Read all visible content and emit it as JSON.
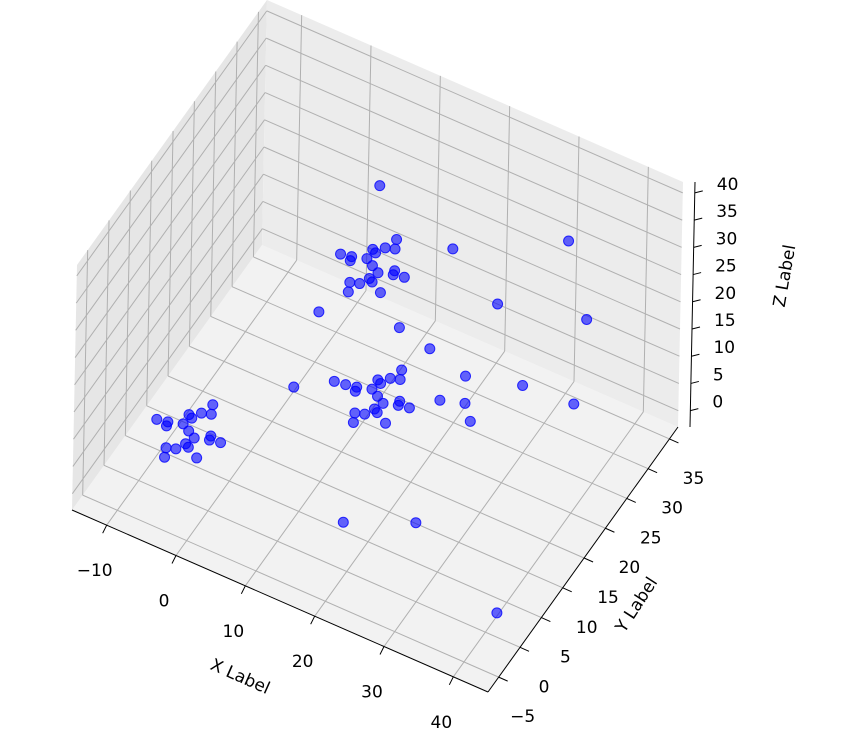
{
  "chart_data": {
    "type": "scatter3d",
    "xlabel": "X Label",
    "ylabel": "Y Label",
    "zlabel": "Z Label",
    "color": "#0000ff",
    "grid": true,
    "xlim": [
      -15,
      45
    ],
    "ylim": [
      -7.5,
      37
    ],
    "zlim": [
      -3,
      42
    ],
    "xticks": [
      {
        "value": -10,
        "label": "−10"
      },
      0,
      10,
      20,
      30,
      40
    ],
    "yticks": [
      {
        "value": -5,
        "label": "−5"
      },
      0,
      5,
      10,
      15,
      20,
      25,
      30,
      35
    ],
    "zticks": [
      0,
      5,
      10,
      15,
      20,
      25,
      30,
      35,
      40
    ],
    "x": [
      -3,
      0,
      -6,
      -3,
      -3,
      -3,
      -3,
      -1,
      -5,
      -1,
      -5,
      1,
      -7,
      -2,
      -4,
      -1,
      -5,
      -2,
      -4,
      0,
      15,
      18,
      12,
      15,
      15,
      15,
      15,
      17,
      13,
      17,
      13,
      19,
      11,
      16,
      14,
      17,
      13,
      16,
      14,
      18,
      5,
      8,
      2,
      5,
      5,
      5,
      5,
      7,
      3,
      7,
      3,
      9,
      1,
      6,
      4,
      7,
      3,
      6,
      4,
      8,
      7,
      20,
      30,
      34,
      4,
      23,
      12,
      17,
      21,
      3,
      7,
      28,
      21,
      18,
      23,
      33,
      17,
      25,
      41
    ],
    "y": [
      0,
      0,
      0,
      3,
      -3,
      0,
      0,
      2,
      -2,
      -2,
      2,
      1,
      -1,
      -1,
      1,
      2,
      -2,
      4,
      -4,
      -3,
      15,
      15,
      15,
      18,
      12,
      15,
      15,
      17,
      13,
      13,
      17,
      16,
      14,
      14,
      16,
      17,
      13,
      19,
      11,
      12,
      30,
      30,
      30,
      33,
      27,
      30,
      30,
      32,
      28,
      28,
      32,
      31,
      29,
      29,
      31,
      32,
      28,
      34,
      26,
      27,
      28,
      24,
      35,
      33,
      19,
      30,
      25,
      24,
      26,
      15,
      18,
      28,
      26,
      25,
      24,
      32,
      4,
      8,
      1
    ],
    "z": [
      10,
      10,
      10,
      10,
      10,
      13,
      7,
      12,
      8,
      12,
      8,
      9,
      11,
      14,
      6,
      8,
      12,
      11,
      9,
      10,
      10,
      10,
      10,
      10,
      10,
      13,
      7,
      12,
      8,
      12,
      8,
      9,
      11,
      14,
      6,
      8,
      12,
      11,
      9,
      10,
      12,
      12,
      12,
      12,
      12,
      15,
      9,
      14,
      10,
      14,
      10,
      11,
      13,
      16,
      8,
      10,
      14,
      13,
      11,
      12,
      30,
      30,
      25,
      15,
      15,
      15,
      10,
      10,
      5,
      5,
      5,
      5,
      0,
      0,
      0,
      0,
      0,
      0,
      0
    ]
  }
}
